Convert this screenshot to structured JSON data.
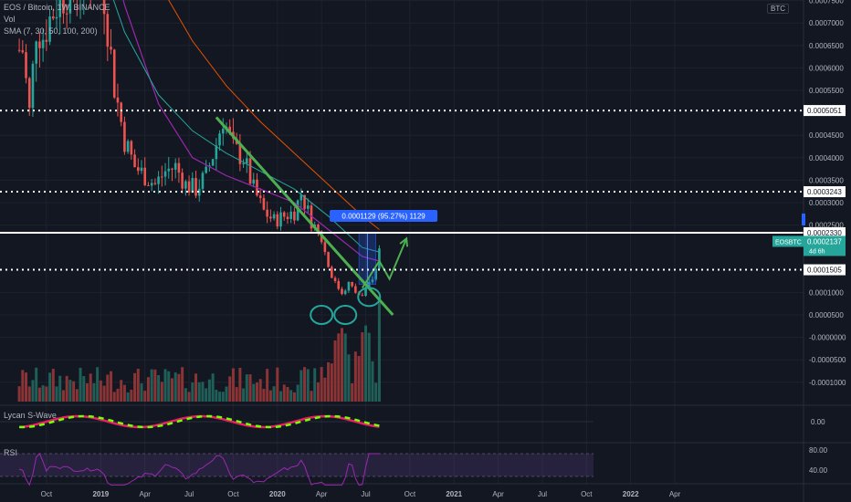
{
  "header": {
    "symbol_line": "EOS / Bitcoin, 1W, BINANCE",
    "vol_label": "Vol",
    "sma_label": "SMA (7, 30, 50, 100, 200)",
    "currency_badge": "BTC"
  },
  "price_axis": {
    "ticks": [
      "0.0007500",
      "0.0007000",
      "0.0006500",
      "0.0006000",
      "0.0005500",
      "0.0004500",
      "0.0004000",
      "0.0003500",
      "0.0003000",
      "0.0002500",
      "0.0001000",
      "0.0000500",
      "-0.0000000",
      "-0.0000500",
      "-0.0001000"
    ],
    "levels": [
      {
        "label": "0.0005051",
        "value": 0.0005051,
        "style": "dotted"
      },
      {
        "label": "0.0003243",
        "value": 0.0003243,
        "style": "dotted"
      },
      {
        "label": "0.0002330",
        "value": 0.000233,
        "style": "solid"
      },
      {
        "label": "0.0001505",
        "value": 0.0001505,
        "style": "dotted"
      }
    ],
    "price_tag": {
      "symbol": "EOSBTC",
      "price": "0.0002137",
      "countdown": "4d 6h",
      "value": 0.0002137,
      "color": "#26a69a"
    },
    "measure_label": "0.0001129 (95.27%) 1129"
  },
  "time_axis": {
    "labels": [
      {
        "text": "Oct",
        "t": -3
      },
      {
        "text": "2019",
        "t": 13
      },
      {
        "text": "Apr",
        "t": 26
      },
      {
        "text": "Jul",
        "t": 39
      },
      {
        "text": "Oct",
        "t": 52
      },
      {
        "text": "2020",
        "t": 65
      },
      {
        "text": "Apr",
        "t": 78
      },
      {
        "text": "Jul",
        "t": 91
      },
      {
        "text": "Oct",
        "t": 104
      },
      {
        "text": "2021",
        "t": 117
      },
      {
        "text": "Apr",
        "t": 130
      },
      {
        "text": "Jul",
        "t": 143
      },
      {
        "text": "Oct",
        "t": 156
      },
      {
        "text": "2022",
        "t": 169
      },
      {
        "text": "Apr",
        "t": 182
      }
    ]
  },
  "lycan": {
    "label": "Lycan S-Wave",
    "tick": "0.00"
  },
  "rsi": {
    "label": "RSI",
    "ticks": [
      "80.00",
      "40.00"
    ]
  },
  "colors": {
    "up": "#26a69a",
    "down": "#ef5350",
    "sma_purple": "#9c27b0",
    "sma_teal": "#26a69a",
    "sma_orange": "#e65100",
    "trend_green": "#4caf50",
    "accent_blue": "#2962ff"
  },
  "chart_data": {
    "type": "candlestick",
    "title": "EOS / Bitcoin, 1W, BINANCE",
    "x_unit": "weeks since 2019-01-01",
    "y_range": [
      -0.0001,
      0.00077
    ],
    "anchors": [
      {
        "t": -10,
        "c": 0.00064
      },
      {
        "t": -8,
        "c": 0.0005
      },
      {
        "t": -6,
        "c": 0.00069
      },
      {
        "t": -4,
        "c": 0.00067
      },
      {
        "t": -2,
        "c": 0.00071
      },
      {
        "t": 0,
        "c": 0.00074
      },
      {
        "t": 3,
        "c": 0.00077
      },
      {
        "t": 6,
        "c": 0.00078
      },
      {
        "t": 9,
        "c": 0.00079
      },
      {
        "t": 12,
        "c": 0.00082
      },
      {
        "t": 14,
        "c": 0.00076
      },
      {
        "t": 17,
        "c": 0.00056
      },
      {
        "t": 20,
        "c": 0.00044
      },
      {
        "t": 23,
        "c": 0.00038
      },
      {
        "t": 26,
        "c": 0.00036
      },
      {
        "t": 29,
        "c": 0.00034
      },
      {
        "t": 32,
        "c": 0.00037
      },
      {
        "t": 35,
        "c": 0.00038
      },
      {
        "t": 38,
        "c": 0.00034
      },
      {
        "t": 41,
        "c": 0.00033
      },
      {
        "t": 44,
        "c": 0.00036
      },
      {
        "t": 47,
        "c": 0.00043
      },
      {
        "t": 49,
        "c": 0.00049
      },
      {
        "t": 52,
        "c": 0.00042
      },
      {
        "t": 55,
        "c": 0.0004
      },
      {
        "t": 58,
        "c": 0.00033
      },
      {
        "t": 61,
        "c": 0.00028
      },
      {
        "t": 64,
        "c": 0.00026
      },
      {
        "t": 67,
        "c": 0.00027
      },
      {
        "t": 70,
        "c": 0.00028
      },
      {
        "t": 72,
        "c": 0.00032
      },
      {
        "t": 75,
        "c": 0.00026
      },
      {
        "t": 78,
        "c": 0.00022
      },
      {
        "t": 80,
        "c": 0.00016
      },
      {
        "t": 82,
        "c": 0.00012
      },
      {
        "t": 84,
        "c": 0.0001
      },
      {
        "t": 86,
        "c": 0.00012
      },
      {
        "t": 88,
        "c": 0.0001
      },
      {
        "t": 90,
        "c": 9e-05
      },
      {
        "t": 92,
        "c": 0.00012
      },
      {
        "t": 94,
        "c": 0.00015
      },
      {
        "t": 95,
        "c": 0.00021
      }
    ],
    "sma_purple": [
      {
        "t": -2,
        "v": 0.0012
      },
      {
        "t": 10,
        "v": 0.00105
      },
      {
        "t": 20,
        "v": 0.00074
      },
      {
        "t": 30,
        "v": 0.00052
      },
      {
        "t": 40,
        "v": 0.0004
      },
      {
        "t": 50,
        "v": 0.00036
      },
      {
        "t": 60,
        "v": 0.00033
      },
      {
        "t": 70,
        "v": 0.0003
      },
      {
        "t": 80,
        "v": 0.00024
      },
      {
        "t": 90,
        "v": 0.00018
      },
      {
        "t": 95,
        "v": 0.00017
      }
    ],
    "sma_teal": [
      {
        "t": 10,
        "v": 0.0009
      },
      {
        "t": 20,
        "v": 0.00068
      },
      {
        "t": 30,
        "v": 0.00054
      },
      {
        "t": 40,
        "v": 0.00046
      },
      {
        "t": 50,
        "v": 0.00041
      },
      {
        "t": 60,
        "v": 0.00037
      },
      {
        "t": 70,
        "v": 0.00033
      },
      {
        "t": 80,
        "v": 0.00027
      },
      {
        "t": 90,
        "v": 0.0002
      },
      {
        "t": 95,
        "v": 0.00019
      }
    ],
    "sma_orange": [
      {
        "t": 20,
        "v": 0.00098
      },
      {
        "t": 30,
        "v": 0.00079
      },
      {
        "t": 40,
        "v": 0.00066
      },
      {
        "t": 50,
        "v": 0.00056
      },
      {
        "t": 60,
        "v": 0.00048
      },
      {
        "t": 70,
        "v": 0.00041
      },
      {
        "t": 80,
        "v": 0.00034
      },
      {
        "t": 90,
        "v": 0.00027
      },
      {
        "t": 95,
        "v": 0.00024
      }
    ],
    "trend_line": [
      {
        "t": 47,
        "v": 0.00049
      },
      {
        "t": 99,
        "v": 5e-05
      }
    ],
    "forecast_path": [
      {
        "t": 90,
        "v": 0.00011
      },
      {
        "t": 95,
        "v": 0.00017
      },
      {
        "t": 98,
        "v": 0.00013
      },
      {
        "t": 103,
        "v": 0.00022
      }
    ],
    "ellipses": [
      {
        "t": 78,
        "v": 5e-05
      },
      {
        "t": 85,
        "v": 5e-05
      },
      {
        "t": 92,
        "v": 9e-05
      }
    ],
    "measure_box": {
      "t0": 89,
      "t1": 94,
      "v0": 0.000118,
      "v1": 0.000233
    }
  }
}
